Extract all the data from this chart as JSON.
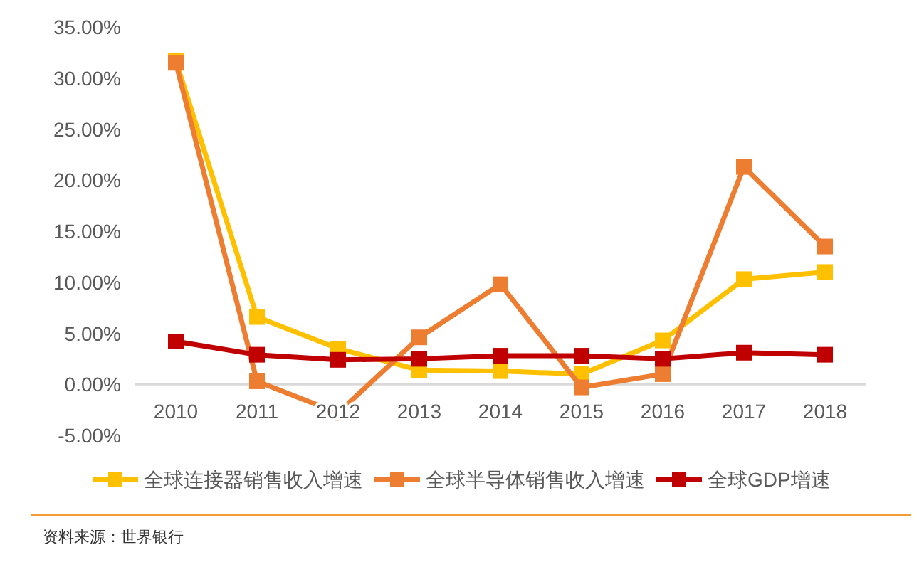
{
  "chart_data": {
    "type": "line",
    "categories": [
      "2010",
      "2011",
      "2012",
      "2013",
      "2014",
      "2015",
      "2016",
      "2017",
      "2018"
    ],
    "series": [
      {
        "name": "全球连接器销售收入增速",
        "color": "#ffc000",
        "values": [
          31.7,
          6.6,
          3.5,
          1.4,
          1.3,
          1.0,
          4.3,
          10.3,
          11.0
        ]
      },
      {
        "name": "全球半导体销售收入增速",
        "color": "#ed7d31",
        "values": [
          31.5,
          0.3,
          -2.8,
          4.6,
          9.8,
          -0.3,
          1.0,
          21.3,
          13.5
        ]
      },
      {
        "name": "全球GDP增速",
        "color": "#c00000",
        "values": [
          4.2,
          2.9,
          2.4,
          2.5,
          2.8,
          2.8,
          2.5,
          3.1,
          2.9
        ]
      }
    ],
    "ylim": [
      -5,
      35
    ],
    "yticks": [
      {
        "value": -5,
        "label": "-5.00%"
      },
      {
        "value": 0,
        "label": "0.00%"
      },
      {
        "value": 5,
        "label": "5.00%"
      },
      {
        "value": 10,
        "label": "10.00%"
      },
      {
        "value": 15,
        "label": "15.00%"
      },
      {
        "value": 20,
        "label": "20.00%"
      },
      {
        "value": 25,
        "label": "25.00%"
      },
      {
        "value": 30,
        "label": "30.00%"
      },
      {
        "value": 35,
        "label": "35.00%"
      }
    ],
    "legend": "bottom",
    "marker": "square",
    "annotations": [
      "资料来源：世界银行"
    ]
  }
}
